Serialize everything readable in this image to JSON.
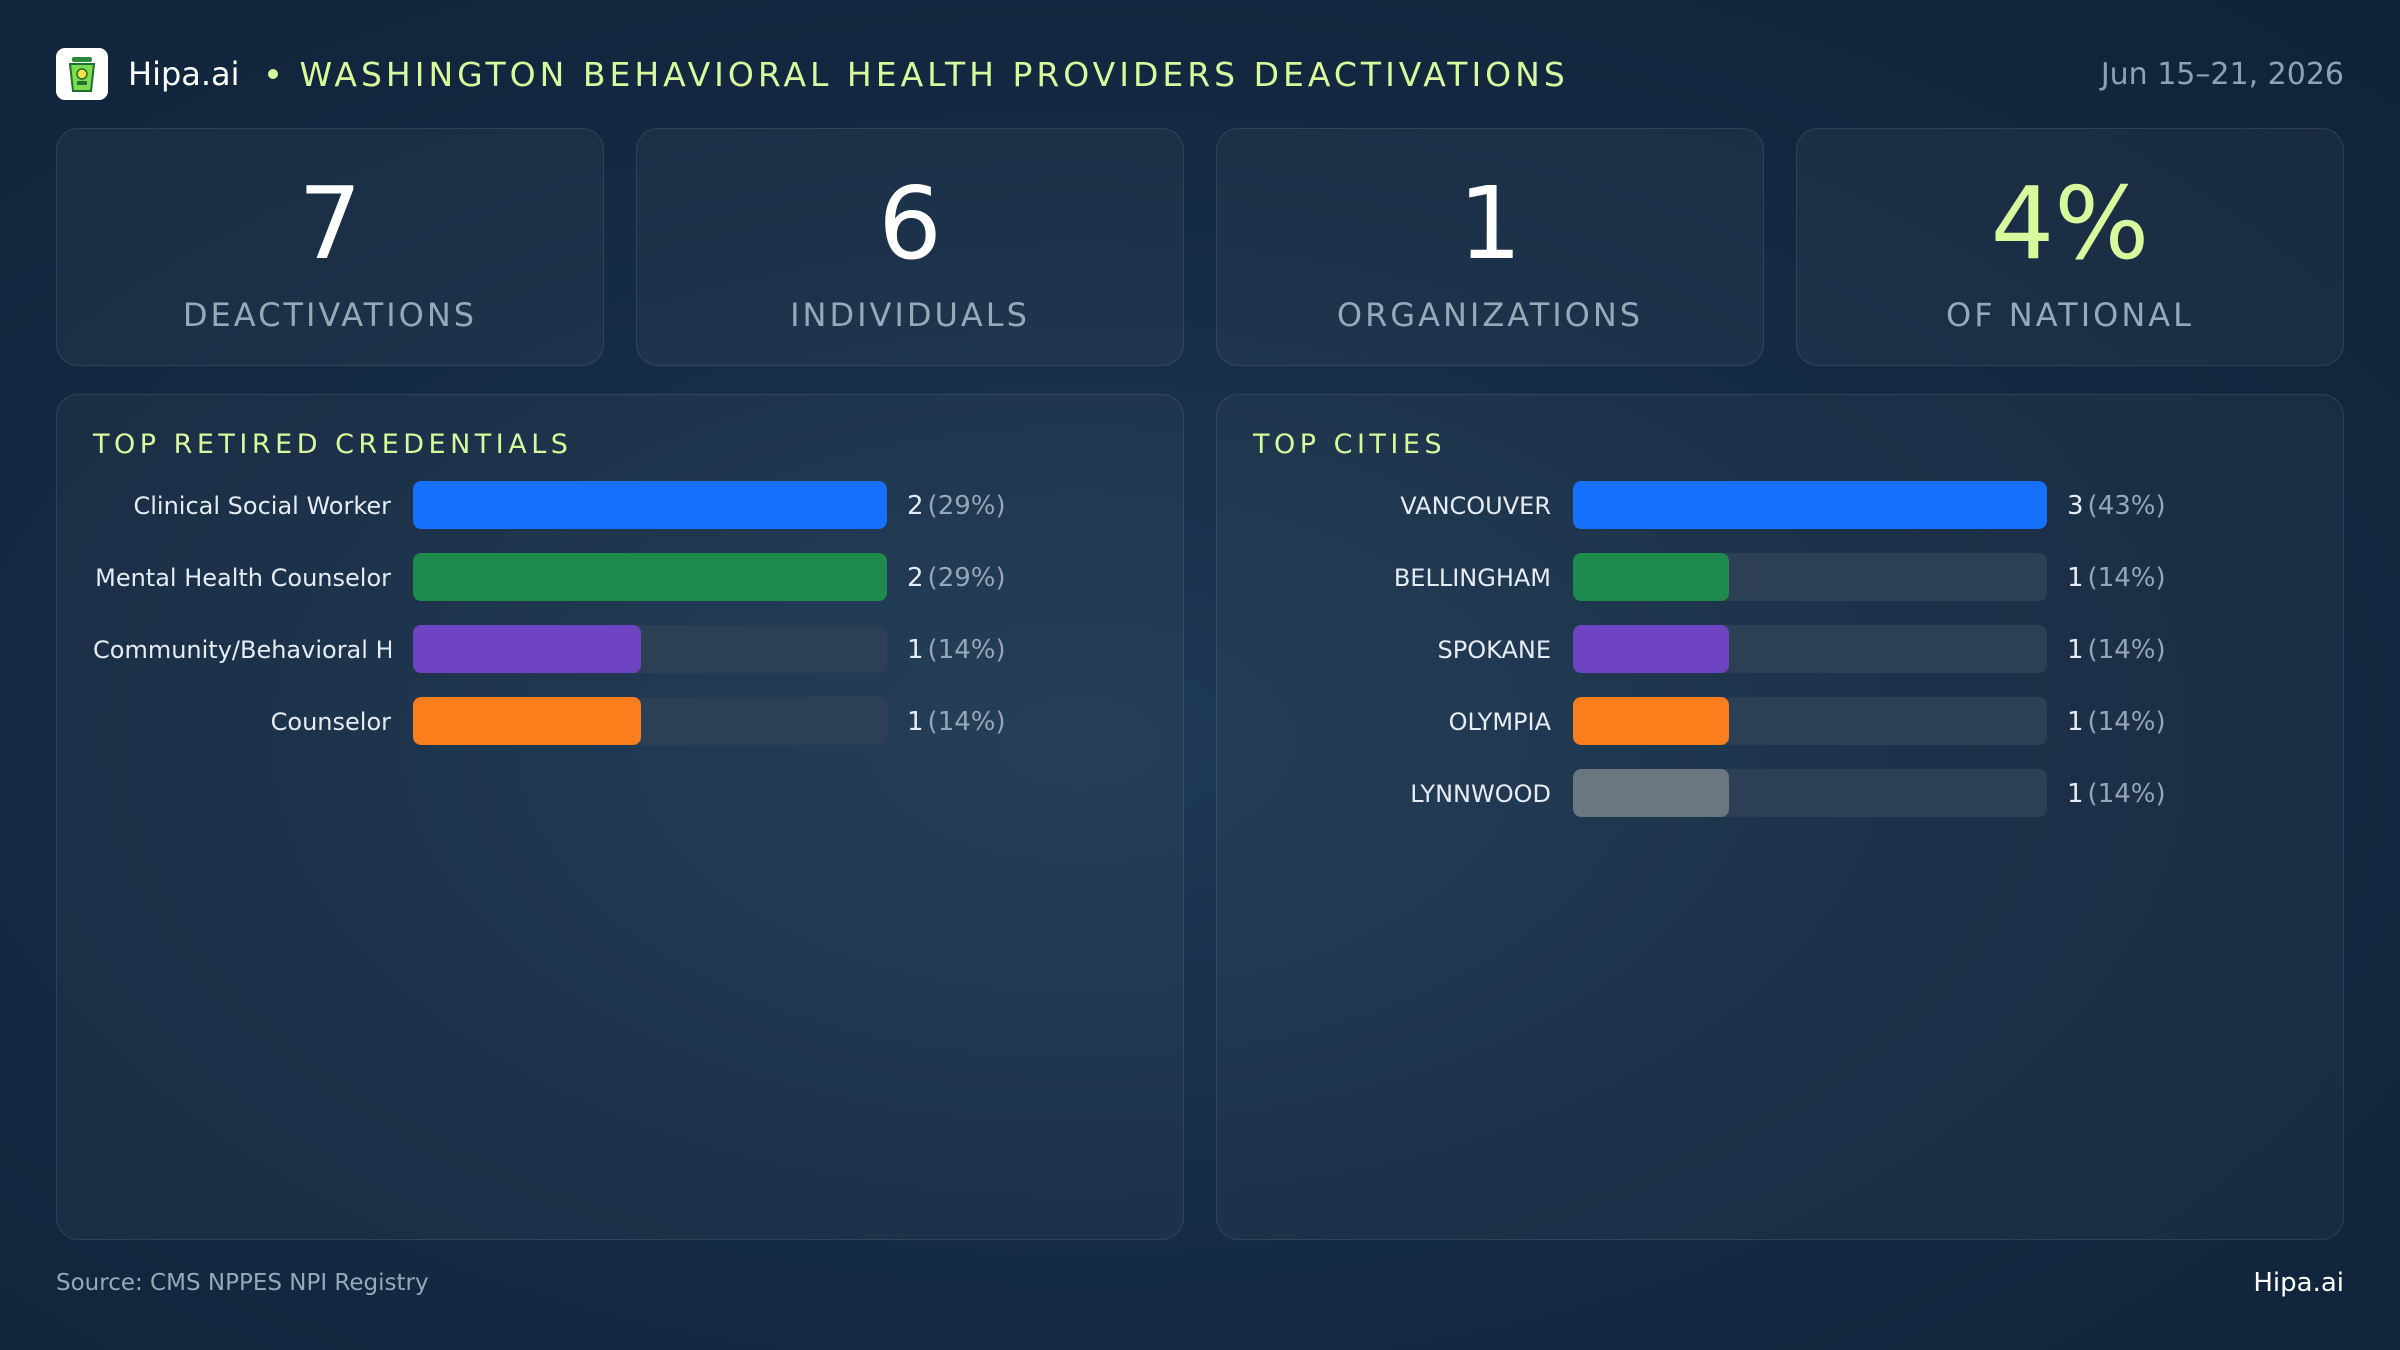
{
  "header": {
    "brand": "Hipa.ai",
    "title": "WASHINGTON BEHAVIORAL HEALTH PROVIDERS DEACTIVATIONS",
    "date_range": "Jun 15–21, 2026",
    "logo_icon": "medicine-cup-icon"
  },
  "stats": [
    {
      "value": "7",
      "label": "DEACTIVATIONS"
    },
    {
      "value": "6",
      "label": "INDIVIDUALS"
    },
    {
      "value": "1",
      "label": "ORGANIZATIONS"
    },
    {
      "value": "4%",
      "label": "OF NATIONAL",
      "accent": "#d9f99d"
    }
  ],
  "credentials": {
    "title": "TOP RETIRED CREDENTIALS",
    "items": [
      {
        "label": "Clinical Social Worker",
        "count": "2",
        "pct": "(29%)",
        "fraction": 1.0,
        "color": "#1670fb"
      },
      {
        "label": "Mental Health Counselor",
        "count": "2",
        "pct": "(29%)",
        "fraction": 1.0,
        "color": "#1f8a4e"
      },
      {
        "label": "Community/Behavioral  H...",
        "count": "1",
        "pct": "(14%)",
        "fraction": 0.48,
        "color": "#6f44c2"
      },
      {
        "label": "Counselor",
        "count": "1",
        "pct": "(14%)",
        "fraction": 0.48,
        "color": "#fb7e1c"
      }
    ]
  },
  "cities": {
    "title": "TOP CITIES",
    "items": [
      {
        "label": "VANCOUVER",
        "count": "3",
        "pct": "(43%)",
        "fraction": 1.0,
        "color": "#1670fb"
      },
      {
        "label": "BELLINGHAM",
        "count": "1",
        "pct": "(14%)",
        "fraction": 0.33,
        "color": "#1f8a4e"
      },
      {
        "label": "SPOKANE",
        "count": "1",
        "pct": "(14%)",
        "fraction": 0.33,
        "color": "#6f44c2"
      },
      {
        "label": "OLYMPIA",
        "count": "1",
        "pct": "(14%)",
        "fraction": 0.33,
        "color": "#fb7e1c"
      },
      {
        "label": "LYNNWOOD",
        "count": "1",
        "pct": "(14%)",
        "fraction": 0.33,
        "color": "#6c7681"
      }
    ]
  },
  "footer": {
    "source": "Source: CMS NPPES NPI Registry",
    "brand": "Hipa.ai"
  }
}
